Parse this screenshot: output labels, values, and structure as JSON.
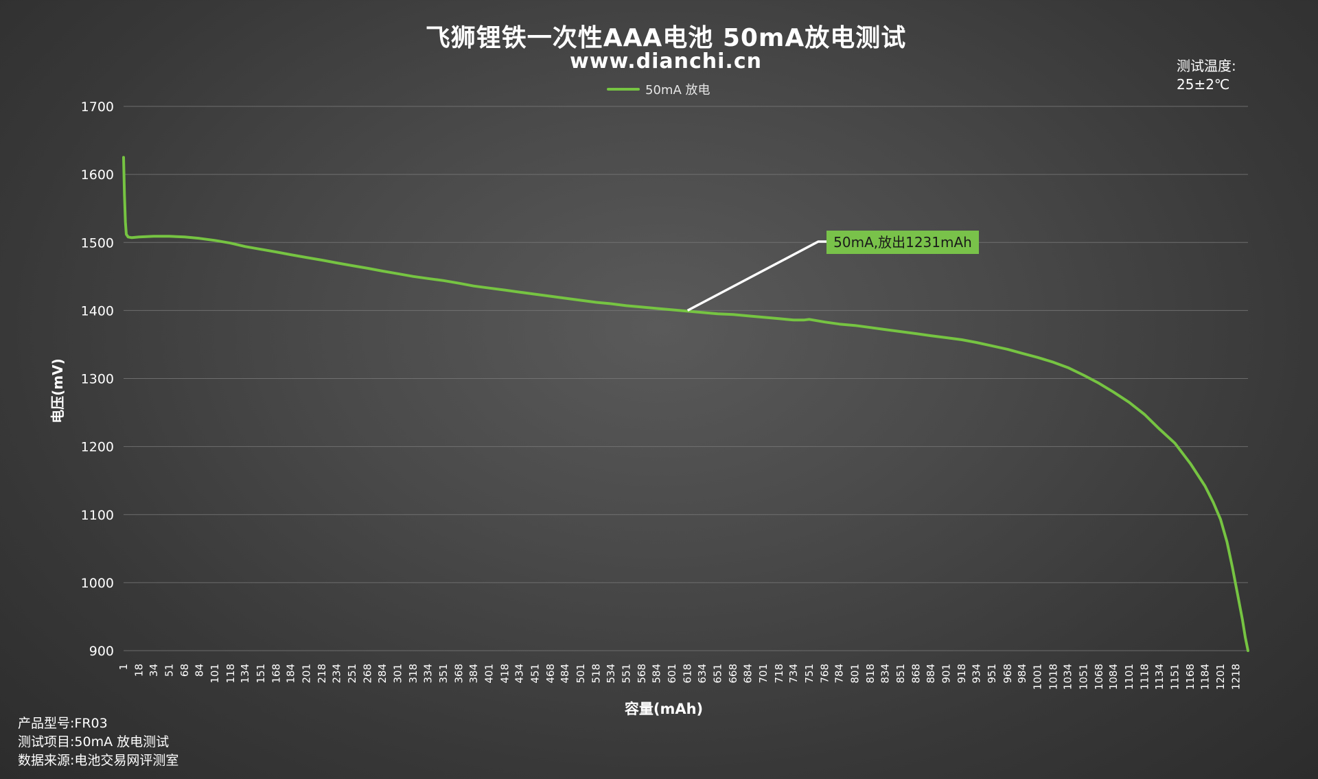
{
  "header": {
    "title": "飞狮锂铁一次性AAA电池 50mA放电测试",
    "subtitle": "www.dianchi.cn"
  },
  "temperature": {
    "label": "测试温度:",
    "value": "25±2℃"
  },
  "footer": {
    "model": "产品型号:FR03",
    "item": "测试项目:50mA 放电测试",
    "source": "数据来源:电池交易网评测室"
  },
  "colors": {
    "series": "#76c442",
    "grid": "#7a7a7a",
    "annotation_bg": "#79c24a",
    "annotation_line": "#ffffff"
  },
  "chart_data": {
    "type": "line",
    "xlabel": "容量(mAh)",
    "ylabel": "电压(mV)",
    "ylim": [
      900,
      1700
    ],
    "yticks": [
      900,
      1000,
      1100,
      1200,
      1300,
      1400,
      1500,
      1600,
      1700
    ],
    "xlim": [
      1,
      1231
    ],
    "x_tick_labels": [
      1,
      18,
      34,
      51,
      68,
      84,
      101,
      118,
      134,
      151,
      168,
      184,
      201,
      218,
      234,
      251,
      268,
      284,
      301,
      318,
      334,
      351,
      368,
      384,
      401,
      418,
      434,
      451,
      468,
      484,
      501,
      518,
      534,
      551,
      568,
      584,
      601,
      618,
      634,
      651,
      668,
      684,
      701,
      718,
      734,
      751,
      768,
      784,
      801,
      818,
      834,
      851,
      868,
      884,
      901,
      918,
      934,
      951,
      968,
      984,
      1001,
      1018,
      1034,
      1051,
      1068,
      1084,
      1101,
      1118,
      1134,
      1151,
      1168,
      1184,
      1201,
      1218
    ],
    "grid": "horizontal",
    "legend_position": "top-center",
    "series": [
      {
        "name": "50mA 放电",
        "points": [
          [
            1,
            1625
          ],
          [
            2,
            1570
          ],
          [
            3,
            1530
          ],
          [
            4,
            1512
          ],
          [
            6,
            1508
          ],
          [
            10,
            1507
          ],
          [
            18,
            1508
          ],
          [
            34,
            1509
          ],
          [
            51,
            1509
          ],
          [
            68,
            1508
          ],
          [
            84,
            1506
          ],
          [
            101,
            1503
          ],
          [
            118,
            1499
          ],
          [
            134,
            1494
          ],
          [
            151,
            1490
          ],
          [
            168,
            1486
          ],
          [
            184,
            1482
          ],
          [
            201,
            1478
          ],
          [
            218,
            1474
          ],
          [
            234,
            1470
          ],
          [
            251,
            1466
          ],
          [
            268,
            1462
          ],
          [
            284,
            1458
          ],
          [
            301,
            1454
          ],
          [
            318,
            1450
          ],
          [
            334,
            1447
          ],
          [
            351,
            1444
          ],
          [
            368,
            1440
          ],
          [
            384,
            1436
          ],
          [
            401,
            1433
          ],
          [
            418,
            1430
          ],
          [
            434,
            1427
          ],
          [
            451,
            1424
          ],
          [
            468,
            1421
          ],
          [
            484,
            1418
          ],
          [
            501,
            1415
          ],
          [
            518,
            1412
          ],
          [
            534,
            1410
          ],
          [
            551,
            1407
          ],
          [
            568,
            1405
          ],
          [
            584,
            1403
          ],
          [
            601,
            1401
          ],
          [
            618,
            1399
          ],
          [
            634,
            1397
          ],
          [
            651,
            1395
          ],
          [
            668,
            1394
          ],
          [
            684,
            1392
          ],
          [
            701,
            1390
          ],
          [
            718,
            1388
          ],
          [
            734,
            1386
          ],
          [
            745,
            1386
          ],
          [
            751,
            1387
          ],
          [
            768,
            1383
          ],
          [
            784,
            1380
          ],
          [
            801,
            1378
          ],
          [
            818,
            1375
          ],
          [
            834,
            1372
          ],
          [
            851,
            1369
          ],
          [
            868,
            1366
          ],
          [
            884,
            1363
          ],
          [
            901,
            1360
          ],
          [
            918,
            1357
          ],
          [
            934,
            1353
          ],
          [
            951,
            1348
          ],
          [
            968,
            1343
          ],
          [
            984,
            1337
          ],
          [
            1001,
            1331
          ],
          [
            1018,
            1324
          ],
          [
            1034,
            1316
          ],
          [
            1051,
            1305
          ],
          [
            1068,
            1293
          ],
          [
            1084,
            1280
          ],
          [
            1101,
            1265
          ],
          [
            1118,
            1247
          ],
          [
            1134,
            1226
          ],
          [
            1151,
            1205
          ],
          [
            1168,
            1175
          ],
          [
            1184,
            1142
          ],
          [
            1193,
            1118
          ],
          [
            1201,
            1093
          ],
          [
            1208,
            1060
          ],
          [
            1214,
            1022
          ],
          [
            1220,
            980
          ],
          [
            1225,
            945
          ],
          [
            1228,
            920
          ],
          [
            1231,
            900
          ]
        ]
      }
    ],
    "annotation": {
      "text": "50mA,放出1231mAh",
      "points_to": [
        618,
        1400
      ]
    }
  }
}
